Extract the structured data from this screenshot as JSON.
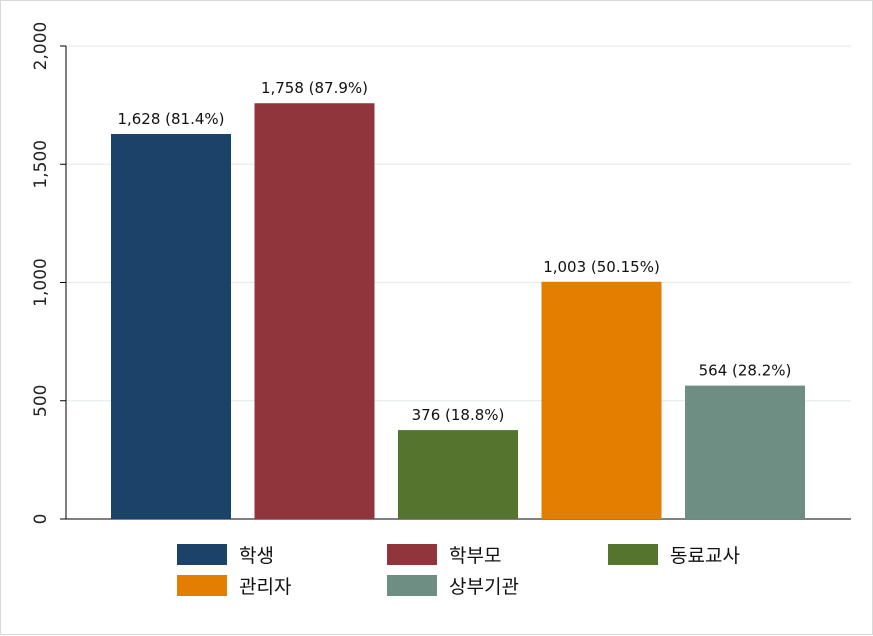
{
  "chart_data": {
    "type": "bar",
    "categories": [
      "학생",
      "학부모",
      "동료교사",
      "관리자",
      "상부기관"
    ],
    "values": [
      1628,
      1758,
      376,
      1003,
      564
    ],
    "data_labels": [
      "1,628 (81.4%)",
      "1,758 (87.9%)",
      "376 (18.8%)",
      "1,003 (50.15%)",
      "564 (28.2%)"
    ],
    "colors": [
      "#1b436a",
      "#90353b",
      "#55752f",
      "#e37e00",
      "#6e8e84"
    ],
    "ylim": [
      0,
      2000
    ],
    "yticks": [
      0,
      500,
      1000,
      1500,
      2000
    ],
    "ytick_labels": [
      "0",
      "500",
      "1,000",
      "1,500",
      "2,000"
    ],
    "grid": true,
    "legend_position": "bottom",
    "title": "",
    "xlabel": "",
    "ylabel": ""
  }
}
